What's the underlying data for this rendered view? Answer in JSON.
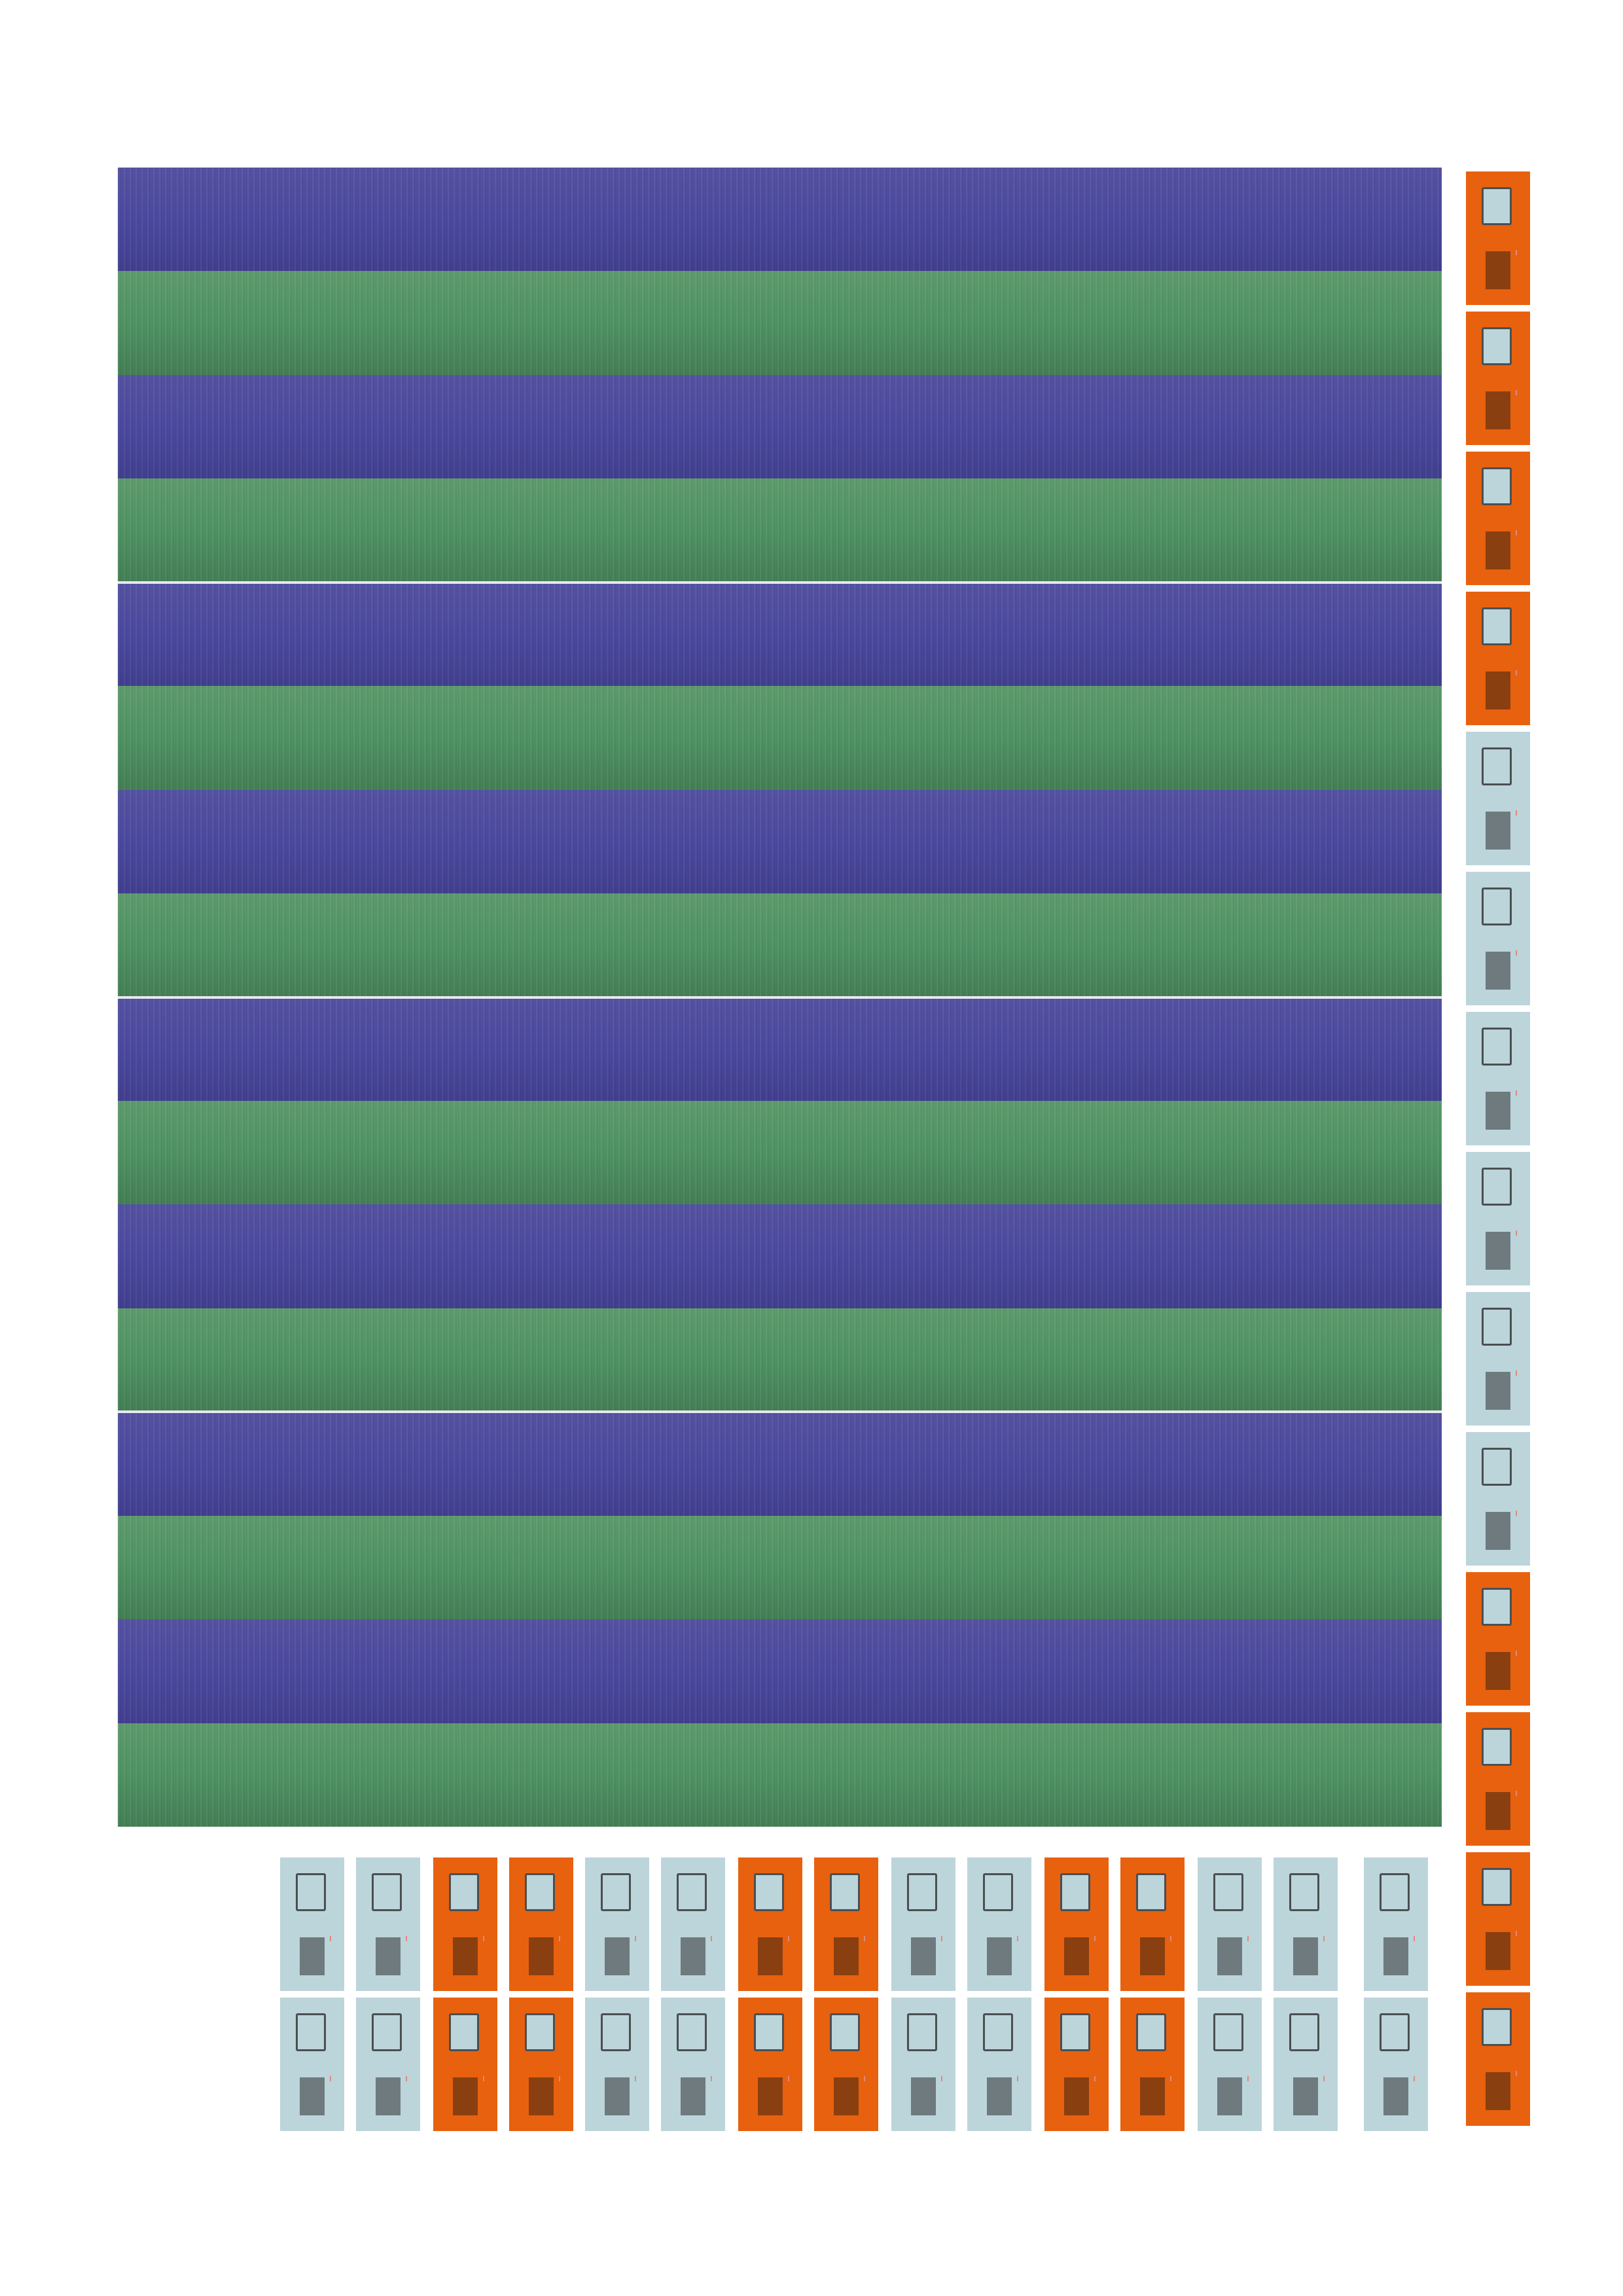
{
  "stripes": [
    "blue",
    "green",
    "blue",
    "green",
    "blue",
    "green",
    "blue",
    "green",
    "blue",
    "green",
    "blue",
    "green",
    "blue",
    "green",
    "blue",
    "green"
  ],
  "right_column_tiles": [
    "orange",
    "orange",
    "orange",
    "orange",
    "light",
    "light",
    "light",
    "light",
    "light",
    "light",
    "orange",
    "orange",
    "orange",
    "orange"
  ],
  "bottom_rows": [
    [
      "light",
      "light",
      "orange",
      "orange",
      "light",
      "light",
      "orange",
      "orange",
      "light",
      "light",
      "orange",
      "orange",
      "light",
      "light",
      "light"
    ],
    [
      "light",
      "light",
      "orange",
      "orange",
      "light",
      "light",
      "orange",
      "orange",
      "light",
      "light",
      "orange",
      "orange",
      "light",
      "light",
      "light"
    ]
  ],
  "colors": {
    "blue": "#4b49a0",
    "green": "#4f9363",
    "orange": "#e8610f",
    "light": "#bcd5da",
    "door_orange": "#8a3f10",
    "door_light": "#6e7a7d"
  },
  "icons": {
    "tile_window": "window-icon",
    "tile_door": "door-icon"
  }
}
